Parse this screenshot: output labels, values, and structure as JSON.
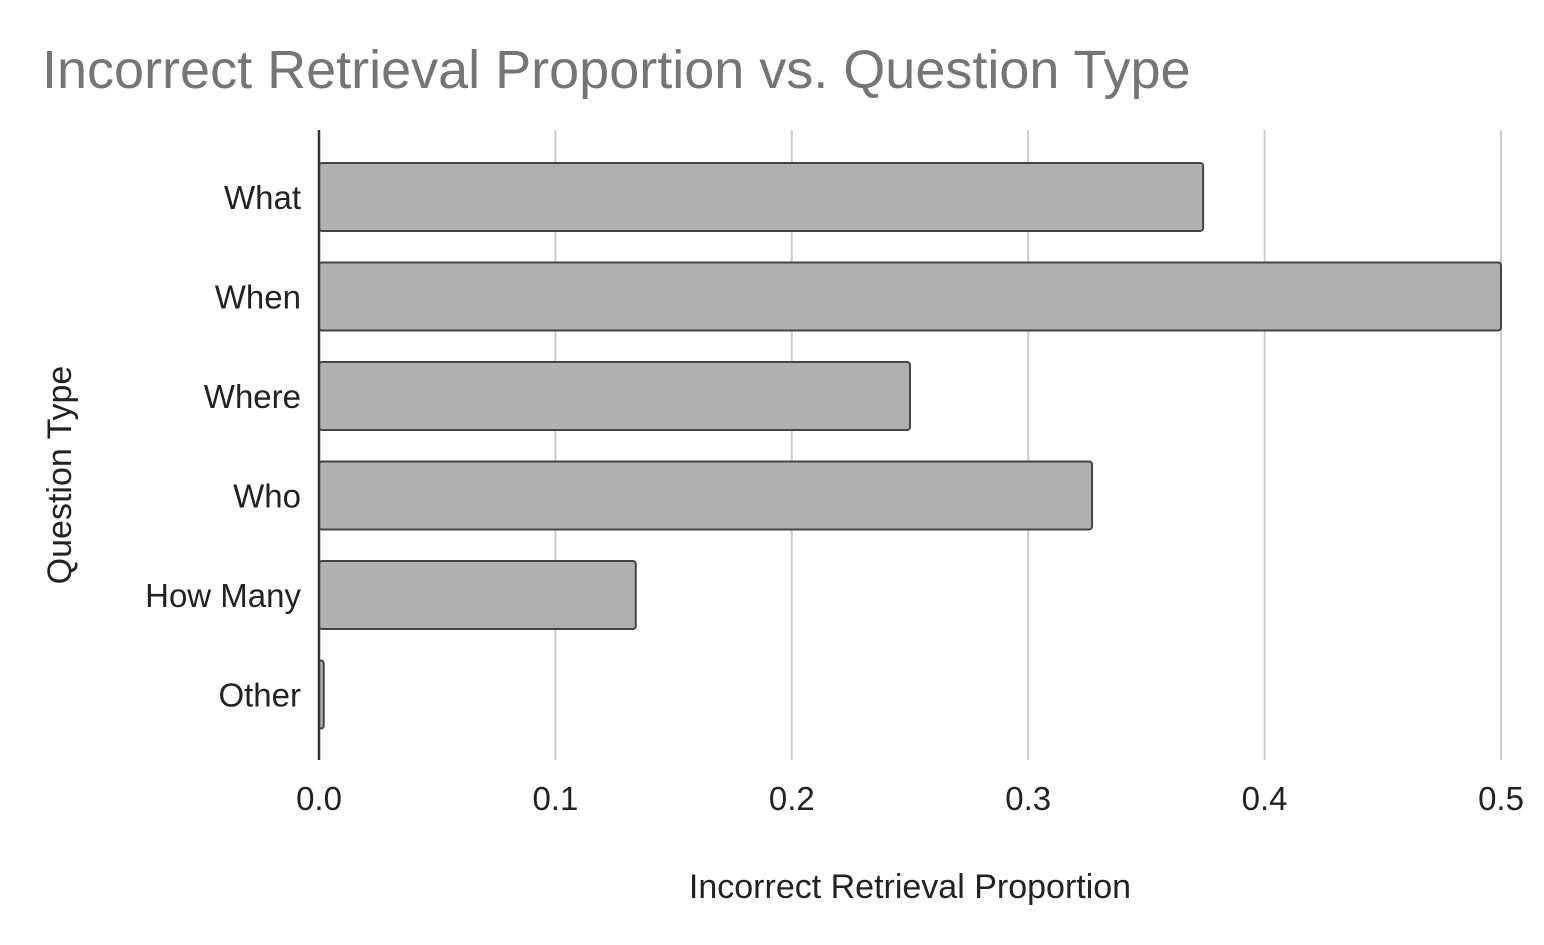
{
  "chart_data": {
    "type": "bar",
    "orientation": "horizontal",
    "title": "Incorrect Retrieval Proportion vs. Question Type",
    "xlabel": "Incorrect Retrieval Proportion",
    "ylabel": "Question Type",
    "categories": [
      "What",
      "When",
      "Where",
      "Who",
      "How Many",
      "Other"
    ],
    "values": [
      0.374,
      0.5,
      0.25,
      0.327,
      0.134,
      0.002
    ],
    "xlim": [
      0,
      0.5
    ],
    "xticks": [
      "0.0",
      "0.1",
      "0.2",
      "0.3",
      "0.4",
      "0.5"
    ],
    "grid": true,
    "legend": "none",
    "colors": {
      "bar_fill": "#b0b0b0",
      "bar_stroke": "#444444",
      "grid": "#cccccc",
      "axis": "#333333",
      "title": "#757575"
    }
  }
}
